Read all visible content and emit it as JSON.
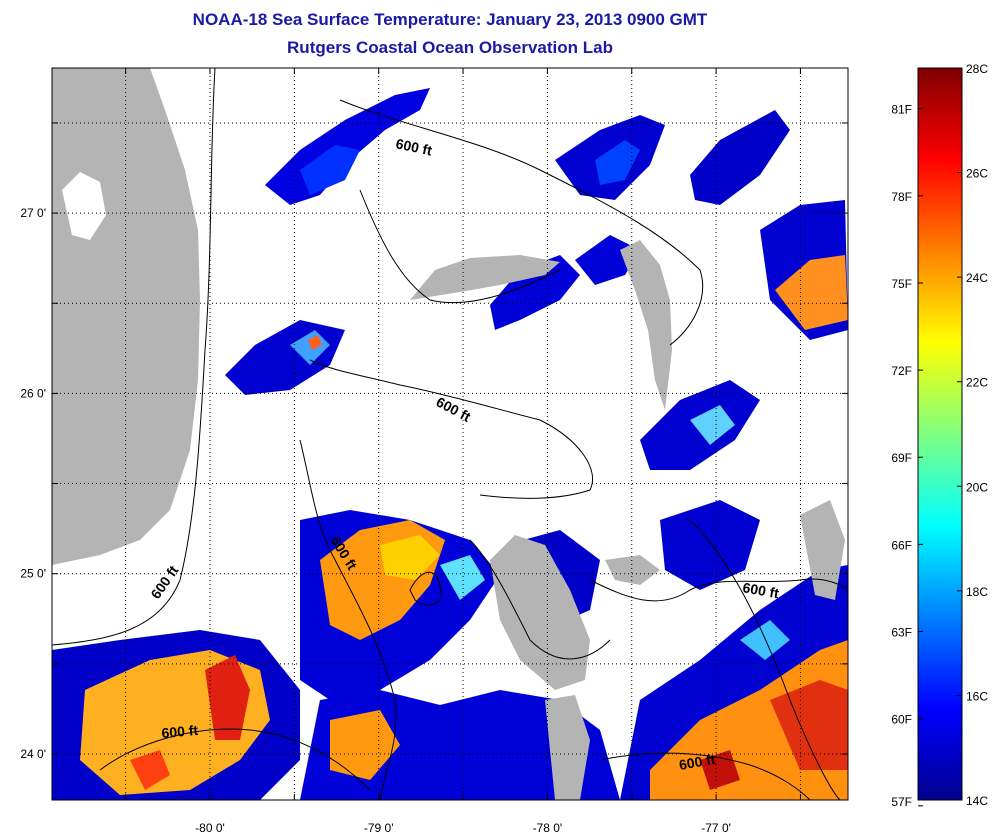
{
  "header": {
    "title": "NOAA-18 Sea Surface Temperature:  January 23, 2013 0900 GMT",
    "subtitle": "Rutgers Coastal Ocean Observation Lab"
  },
  "map": {
    "lat_ticks": [
      {
        "label": "27 0'",
        "value": 27.0
      },
      {
        "label": "26 0'",
        "value": 26.0
      },
      {
        "label": "25 0'",
        "value": 25.0
      },
      {
        "label": "24 0'",
        "value": 24.0
      }
    ],
    "lon_ticks": [
      {
        "label": "-80 0'",
        "value": -80.0
      },
      {
        "label": "-79 0'",
        "value": -79.0
      },
      {
        "label": "-78 0'",
        "value": -78.0
      },
      {
        "label": "-77 0'",
        "value": -77.0
      }
    ],
    "contour_label": "600 ft",
    "colors": {
      "land": "#b4b4b4",
      "cloud": "#ffffff",
      "frame": "#000000"
    }
  },
  "colorbar": {
    "celsius_labels": [
      "28C",
      "26C",
      "24C",
      "22C",
      "20C",
      "18C",
      "16C",
      "14C"
    ],
    "fahrenheit_labels": [
      "81F",
      "78F",
      "75F",
      "72F",
      "69F",
      "66F",
      "63F",
      "60F",
      "57F"
    ],
    "colormap": [
      "#00008f",
      "#0000ff",
      "#0080ff",
      "#00ffff",
      "#80ff80",
      "#ffff00",
      "#ff8000",
      "#ff0000",
      "#800000"
    ]
  }
}
